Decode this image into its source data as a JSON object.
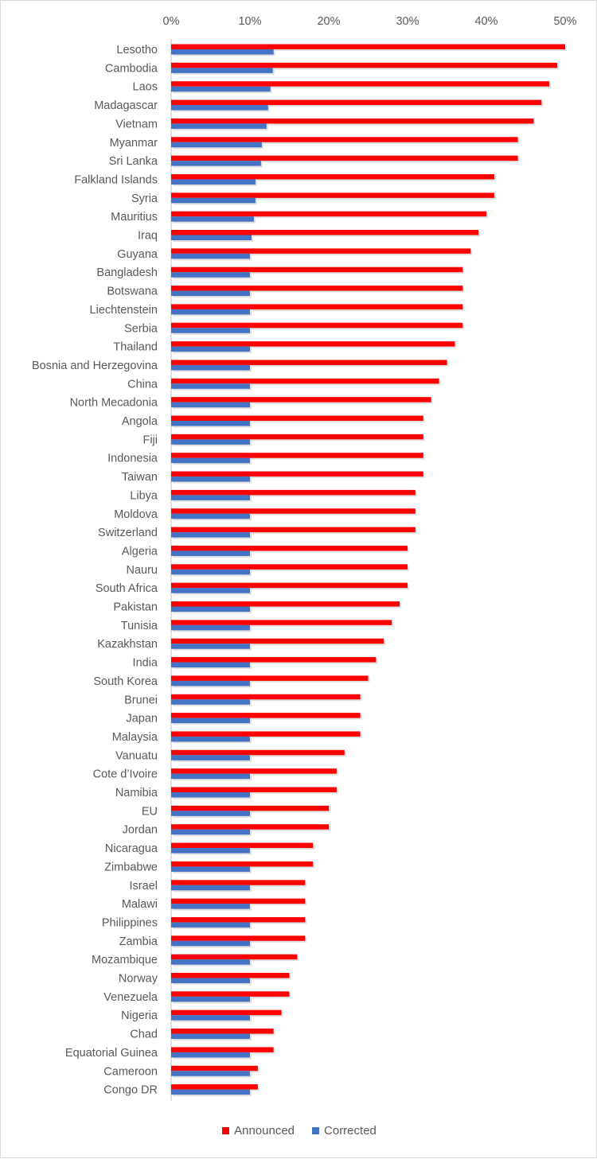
{
  "chart_data": {
    "type": "bar",
    "orientation": "horizontal",
    "categories": [
      "Lesotho",
      "Cambodia",
      "Laos",
      "Madagascar",
      "Vietnam",
      "Myanmar",
      "Sri Lanka",
      "Falkland Islands",
      "Syria",
      "Mauritius",
      "Iraq",
      "Guyana",
      "Bangladesh",
      "Botswana",
      "Liechtenstein",
      "Serbia",
      "Thailand",
      "Bosnia and Herzegovina",
      "China",
      "North Mecadonia",
      "Angola",
      "Fiji",
      "Indonesia",
      "Taiwan",
      "Libya",
      "Moldova",
      "Switzerland",
      "Algeria",
      "Nauru",
      "South Africa",
      "Pakistan",
      "Tunisia",
      "Kazakhstan",
      "India",
      "South Korea",
      "Brunei",
      "Japan",
      "Malaysia",
      "Vanuatu",
      "Cote d’Ivoire",
      "Namibia",
      "EU",
      "Jordan",
      "Nicaragua",
      "Zimbabwe",
      "Israel",
      "Malawi",
      "Philippines",
      "Zambia",
      "Mozambique",
      "Norway",
      "Venezuela",
      "Nigeria",
      "Chad",
      "Equatorial Guinea",
      "Cameroon",
      "Congo DR"
    ],
    "series": [
      {
        "name": "Announced",
        "color": "#ff0000",
        "values": [
          50,
          49,
          48,
          47,
          46,
          44,
          44,
          41,
          41,
          40,
          39,
          38,
          37,
          37,
          37,
          37,
          36,
          35,
          34,
          33,
          32,
          32,
          32,
          32,
          31,
          31,
          31,
          30,
          30,
          30,
          29,
          28,
          27,
          26,
          25,
          24,
          24,
          24,
          22,
          21,
          21,
          20,
          20,
          18,
          18,
          17,
          17,
          17,
          17,
          16,
          15,
          15,
          14,
          13,
          13,
          11,
          11
        ]
      },
      {
        "name": "Corrected",
        "color": "#4472c4",
        "values": [
          13,
          12.9,
          12.6,
          12.3,
          12.1,
          11.5,
          11.4,
          10.7,
          10.7,
          10.5,
          10.2,
          10,
          10,
          10,
          10,
          10,
          10,
          10,
          10,
          10,
          10,
          10,
          10,
          10,
          10,
          10,
          10,
          10,
          10,
          10,
          10,
          10,
          10,
          10,
          10,
          10,
          10,
          10,
          10,
          10,
          10,
          10,
          10,
          10,
          10,
          10,
          10,
          10,
          10,
          10,
          10,
          10,
          10,
          10,
          10,
          10,
          10
        ]
      }
    ],
    "x_ticks": [
      "0%",
      "10%",
      "20%",
      "30%",
      "40%",
      "50%"
    ],
    "xlim": [
      0,
      50
    ],
    "x_axis_position": "top",
    "grid": false,
    "legend_position": "bottom",
    "title": "",
    "xlabel": "",
    "ylabel": ""
  }
}
